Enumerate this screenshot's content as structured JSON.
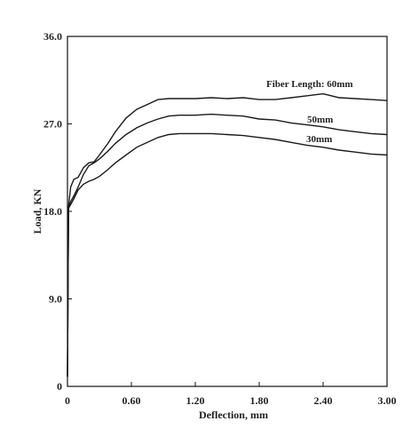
{
  "chart_data": {
    "type": "line",
    "title": "",
    "xlabel": "Deflection, mm",
    "ylabel": "Load, KN",
    "xlim": [
      0,
      3.0
    ],
    "ylim": [
      0,
      36.0
    ],
    "x_ticks": [
      0,
      0.6,
      1.2,
      1.8,
      2.4,
      3.0
    ],
    "x_tick_labels": [
      "0",
      "0.60",
      "1.20",
      "1.80",
      "2.40",
      "3.00"
    ],
    "y_ticks": [
      0,
      9.0,
      18.0,
      27.0,
      36.0
    ],
    "y_tick_labels": [
      "0",
      "9.0",
      "18.0",
      "27.0",
      "36.0"
    ],
    "grid": false,
    "line_color": "#1a1a1a",
    "series": [
      {
        "name": "Fiber Length: 60mm",
        "x": [
          0,
          0.01,
          0.03,
          0.06,
          0.1,
          0.15,
          0.2,
          0.25,
          0.3,
          0.38,
          0.45,
          0.55,
          0.65,
          0.75,
          0.85,
          0.95,
          1.05,
          1.2,
          1.35,
          1.5,
          1.65,
          1.8,
          1.95,
          2.1,
          2.25,
          2.4,
          2.55,
          2.7,
          2.85,
          3.0
        ],
        "y": [
          1.0,
          18.5,
          20.5,
          21.3,
          21.5,
          22.5,
          23.0,
          23.1,
          23.8,
          25.0,
          26.2,
          27.6,
          28.5,
          29.0,
          29.5,
          29.6,
          29.6,
          29.6,
          29.7,
          29.6,
          29.7,
          29.5,
          29.5,
          29.7,
          29.9,
          30.1,
          29.7,
          29.6,
          29.5,
          29.4
        ]
      },
      {
        "name": "50mm",
        "x": [
          0,
          0.01,
          0.03,
          0.06,
          0.1,
          0.15,
          0.2,
          0.25,
          0.3,
          0.38,
          0.45,
          0.55,
          0.65,
          0.75,
          0.85,
          0.95,
          1.05,
          1.2,
          1.35,
          1.5,
          1.65,
          1.8,
          1.95,
          2.1,
          2.25,
          2.4,
          2.55,
          2.7,
          2.85,
          3.0
        ],
        "y": [
          1.0,
          18.4,
          19.0,
          19.6,
          20.5,
          21.8,
          22.7,
          23.0,
          23.4,
          24.2,
          25.0,
          25.9,
          26.6,
          27.1,
          27.5,
          27.8,
          27.9,
          27.9,
          28.0,
          27.9,
          27.8,
          27.5,
          27.4,
          27.1,
          26.9,
          26.7,
          26.4,
          26.2,
          26.0,
          25.9
        ]
      },
      {
        "name": "30mm",
        "x": [
          0,
          0.01,
          0.03,
          0.06,
          0.1,
          0.15,
          0.2,
          0.25,
          0.3,
          0.38,
          0.45,
          0.55,
          0.65,
          0.75,
          0.85,
          0.95,
          1.05,
          1.2,
          1.35,
          1.5,
          1.65,
          1.8,
          1.95,
          2.1,
          2.25,
          2.4,
          2.55,
          2.7,
          2.85,
          3.0
        ],
        "y": [
          1.0,
          18.3,
          18.7,
          19.3,
          20.2,
          20.8,
          21.1,
          21.3,
          21.6,
          22.3,
          23.0,
          23.8,
          24.6,
          25.1,
          25.6,
          25.9,
          26.0,
          26.0,
          26.0,
          25.9,
          25.8,
          25.6,
          25.4,
          25.1,
          24.8,
          24.6,
          24.3,
          24.1,
          23.9,
          23.8
        ]
      }
    ]
  }
}
